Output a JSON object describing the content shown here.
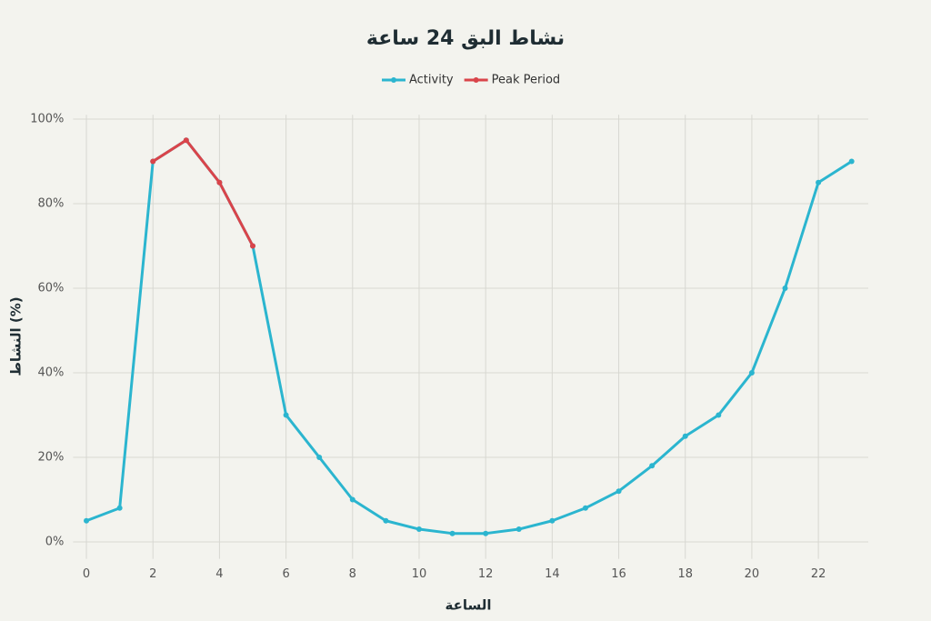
{
  "chart_data": {
    "type": "line",
    "title": "نشاط البق 24 ساعة",
    "x_label": "الساعة",
    "y_label": "النشاط (%)",
    "x": [
      0,
      1,
      2,
      3,
      4,
      5,
      6,
      7,
      8,
      9,
      10,
      11,
      12,
      13,
      14,
      15,
      16,
      17,
      18,
      19,
      20,
      21,
      22,
      23
    ],
    "series": [
      {
        "name": "Activity",
        "color": "#2bb5cf",
        "values": [
          5,
          8,
          90,
          95,
          85,
          70,
          30,
          20,
          10,
          5,
          3,
          2,
          2,
          3,
          5,
          8,
          12,
          18,
          25,
          30,
          40,
          60,
          85,
          90
        ]
      },
      {
        "name": "Peak Period",
        "color": "#d9444a",
        "values": [
          null,
          null,
          90,
          95,
          85,
          70,
          null,
          null,
          null,
          null,
          null,
          null,
          null,
          null,
          null,
          null,
          null,
          null,
          null,
          null,
          null,
          null,
          null,
          null
        ]
      }
    ],
    "xlim": [
      -0.4,
      23.5
    ],
    "xticks": [
      0,
      2,
      4,
      6,
      8,
      10,
      12,
      14,
      16,
      18,
      20,
      22
    ],
    "ylim": [
      -4,
      101
    ],
    "yticks": [
      {
        "value": 0,
        "label": "0%"
      },
      {
        "value": 20,
        "label": "20%"
      },
      {
        "value": 40,
        "label": "40%"
      },
      {
        "value": 60,
        "label": "60%"
      },
      {
        "value": 80,
        "label": "80%"
      },
      {
        "value": 100,
        "label": "100%"
      }
    ],
    "grid": true,
    "legend": "top"
  }
}
